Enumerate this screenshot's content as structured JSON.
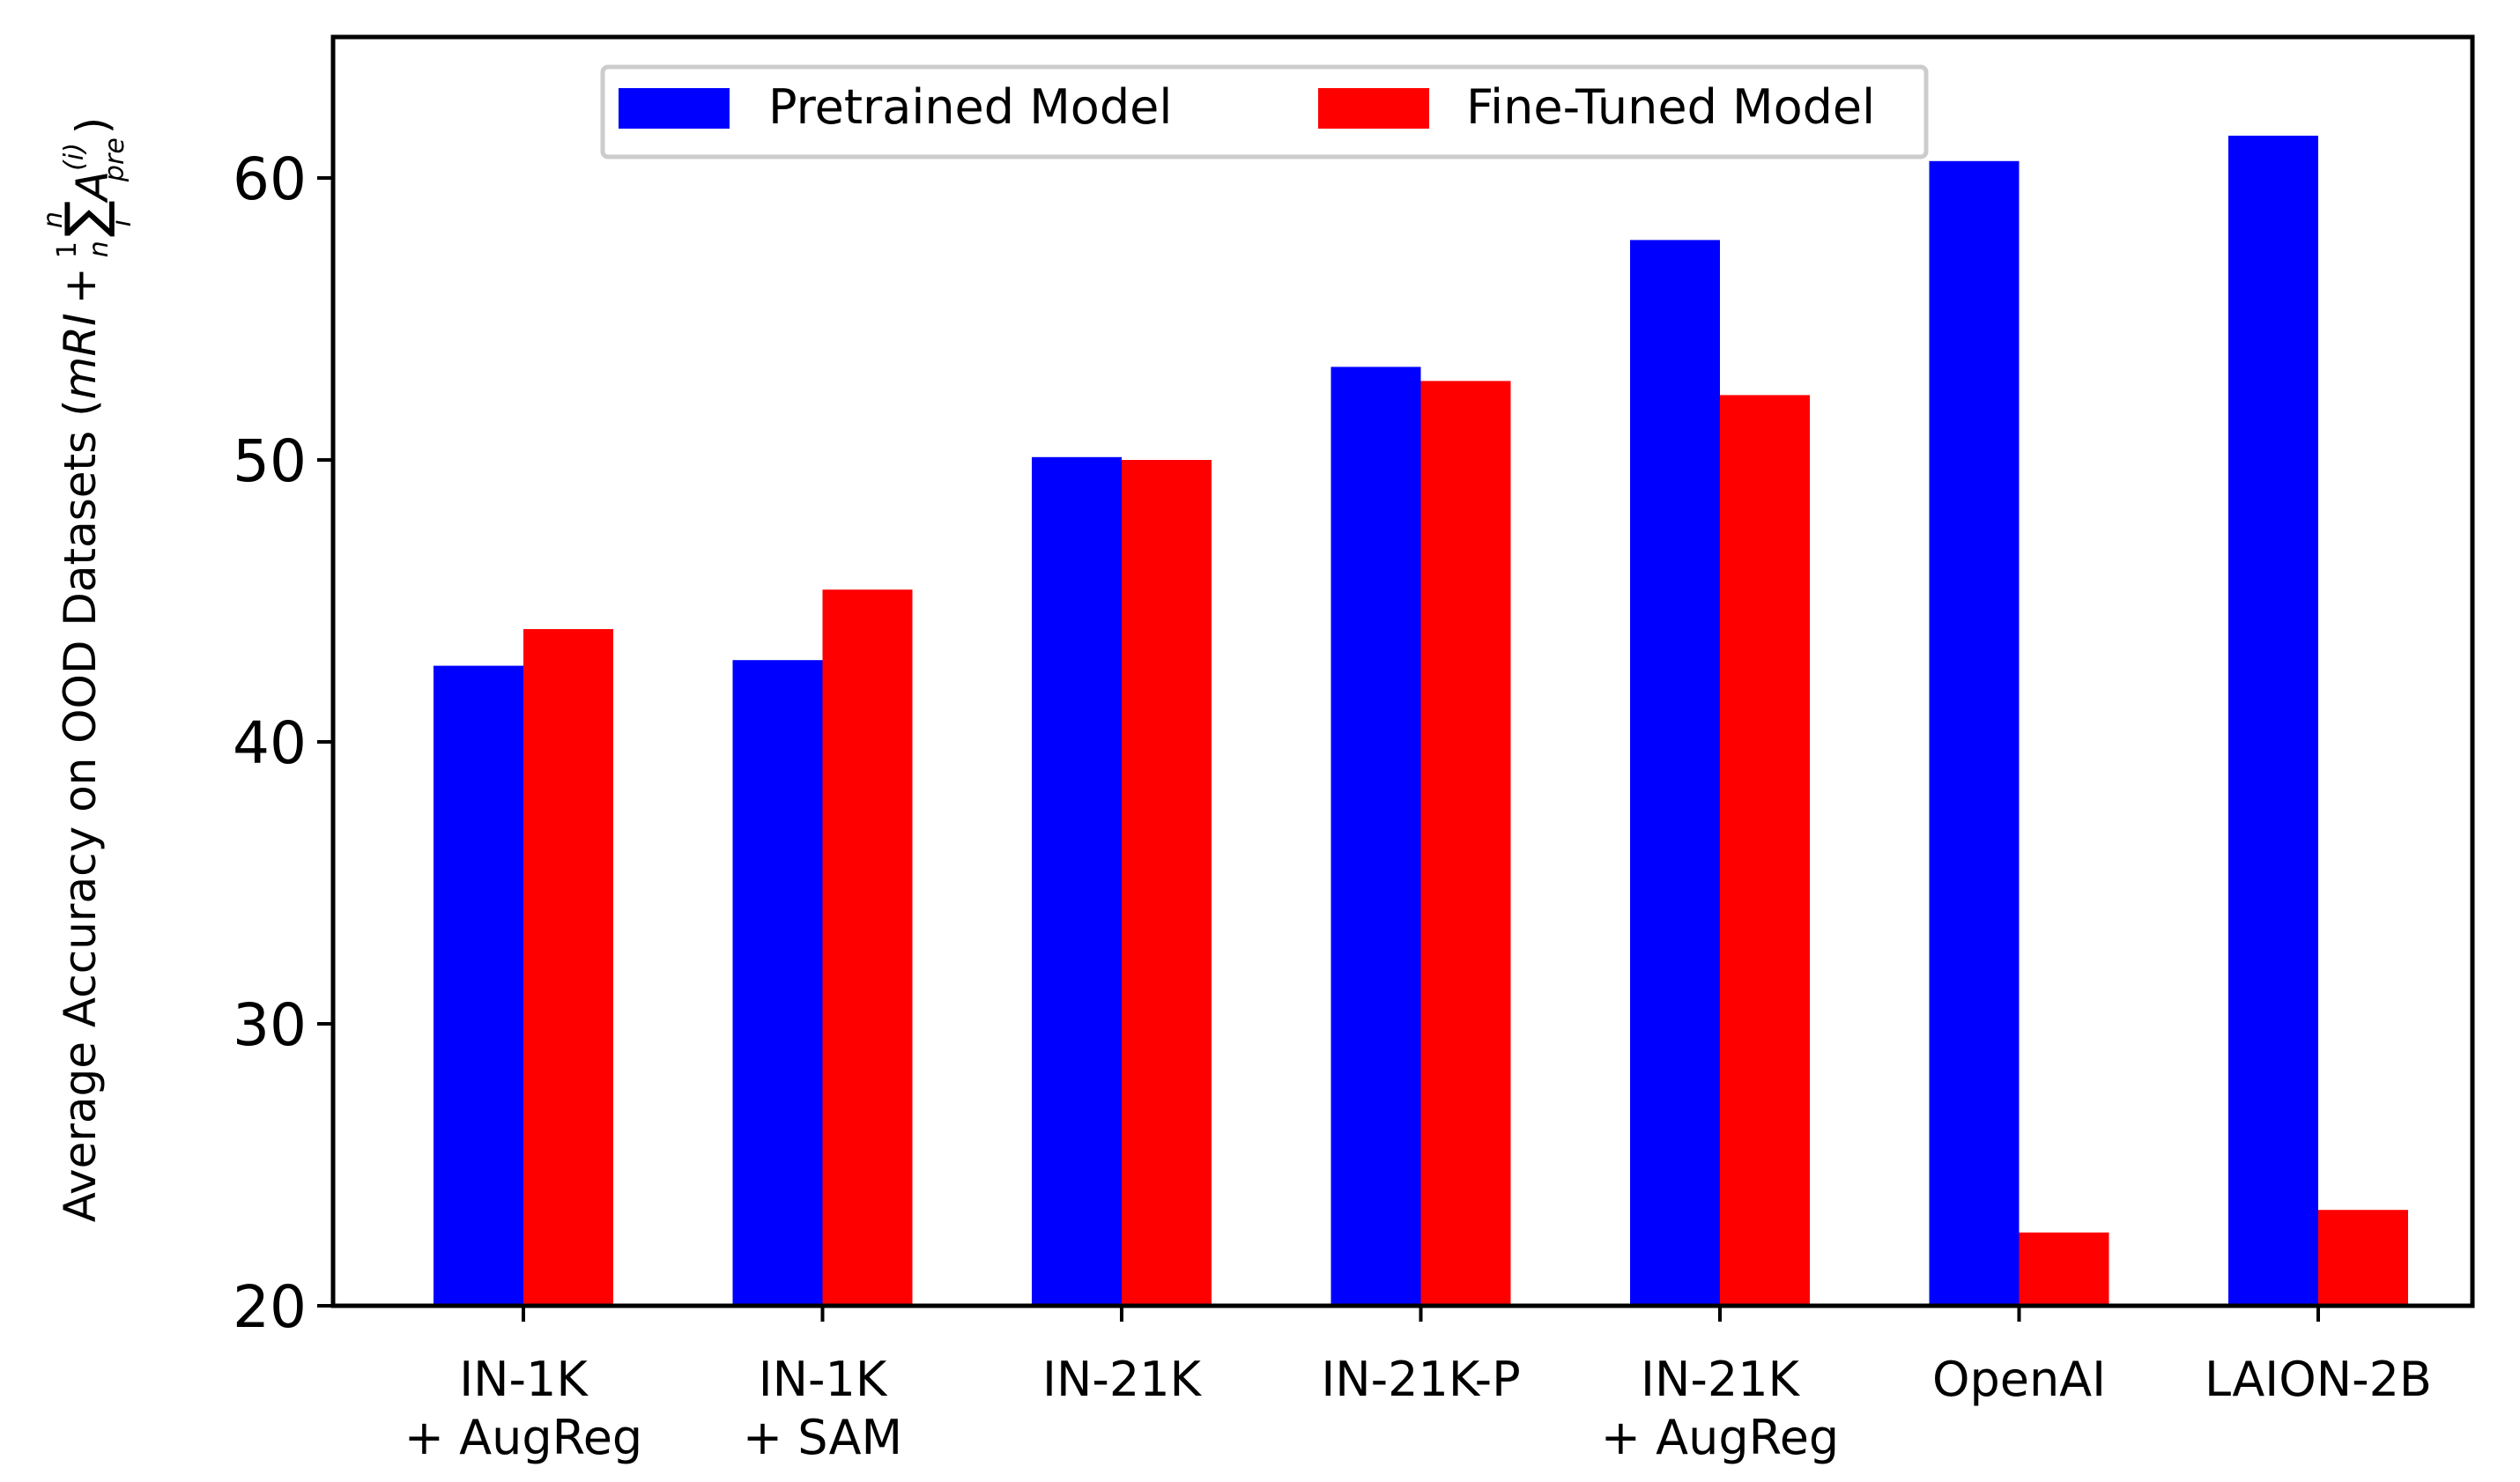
{
  "chart_data": {
    "type": "bar",
    "categories": [
      [
        "IN-1K",
        "+ AugReg"
      ],
      [
        "IN-1K",
        "+ SAM"
      ],
      [
        "IN-21K"
      ],
      [
        "IN-21K-P"
      ],
      [
        "IN-21K",
        "+ AugReg"
      ],
      [
        "OpenAI"
      ],
      [
        "LAION-2B"
      ]
    ],
    "series": [
      {
        "name": "Pretrained Model",
        "color": "#0000ff",
        "values": [
          42.7,
          42.9,
          50.1,
          53.3,
          57.8,
          60.6,
          61.5
        ]
      },
      {
        "name": "Fine-Tuned Model",
        "color": "#ff0000",
        "values": [
          44.0,
          45.4,
          50.0,
          52.8,
          52.3,
          22.6,
          23.4
        ]
      }
    ],
    "ylim": [
      20,
      65
    ],
    "yticks": [
      20,
      30,
      40,
      50,
      60
    ],
    "ylabel_main": "Average Accuracy on OOD Datasets (",
    "ylabel_math": {
      "mri": "mRI",
      "plus": "+",
      "frac_num": "1",
      "frac_den": "n",
      "sum": "∑",
      "sum_upper": "n",
      "sum_lower": "i",
      "A": "A",
      "A_sup": "(i)",
      "A_sub": "pre",
      "close": ")"
    },
    "xlabel": "",
    "title": "",
    "legend_position": "top-center",
    "grid": false
  }
}
